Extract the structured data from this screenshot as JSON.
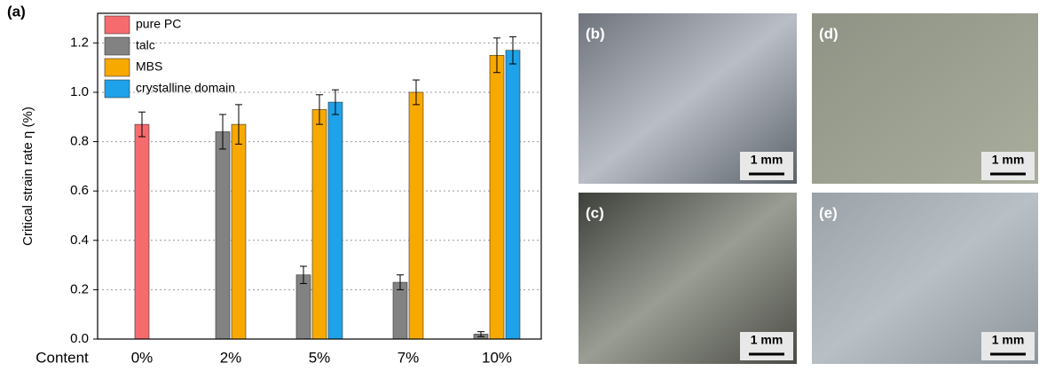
{
  "chart_data": {
    "type": "bar",
    "panel_label": "(a)",
    "y_label": "Critical strain rate η (%)",
    "x_label": "Content",
    "categories": [
      "0%",
      "2%",
      "5%",
      "7%",
      "10%"
    ],
    "series": [
      {
        "name": "pure PC",
        "color": "#f66b6e",
        "values": [
          0.87,
          null,
          null,
          null,
          null
        ],
        "errors": [
          0.05,
          null,
          null,
          null,
          null
        ]
      },
      {
        "name": "talc",
        "color": "#828282",
        "values": [
          null,
          0.84,
          0.26,
          0.23,
          0.02
        ],
        "errors": [
          null,
          0.07,
          0.035,
          0.03,
          0.01
        ]
      },
      {
        "name": "MBS",
        "color": "#f7a900",
        "values": [
          null,
          0.87,
          0.93,
          1.0,
          1.15
        ],
        "errors": [
          null,
          0.08,
          0.06,
          0.05,
          0.07
        ]
      },
      {
        "name": "crystalline domain",
        "color": "#1ea2e9",
        "values": [
          null,
          null,
          0.96,
          null,
          1.17
        ],
        "errors": [
          null,
          null,
          0.05,
          null,
          0.055
        ]
      }
    ],
    "ylim": [
      0,
      1.32
    ],
    "yticks": [
      {
        "value": 0,
        "label": "0.0"
      },
      0.2,
      0.4,
      0.6,
      0.8,
      {
        "value": 1,
        "label": "1.0"
      },
      1.2
    ],
    "grid": true
  },
  "panels": [
    {
      "label": "(b)",
      "scale": "1 mm"
    },
    {
      "label": "(d)",
      "scale": "1 mm"
    },
    {
      "label": "(c)",
      "scale": "1 mm"
    },
    {
      "label": "(e)",
      "scale": "1 mm"
    }
  ]
}
